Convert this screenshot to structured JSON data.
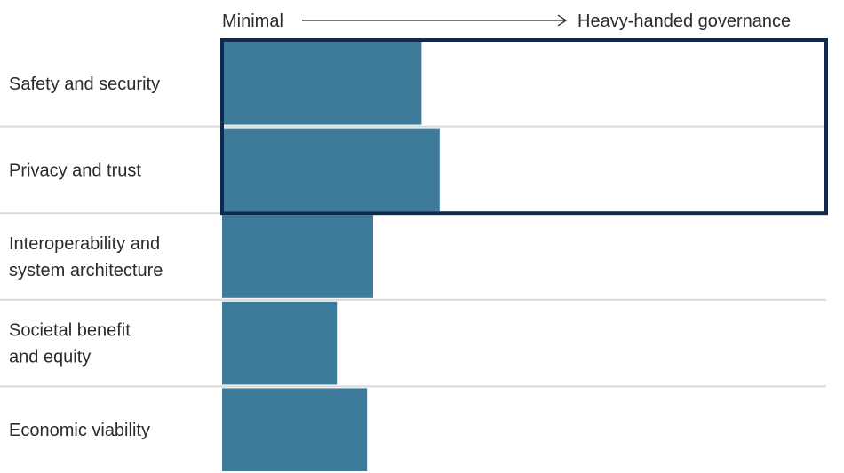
{
  "chart_data": {
    "type": "bar",
    "orientation": "horizontal",
    "scale_left_label": "Minimal",
    "scale_right_label": "Heavy-handed governance",
    "categories": [
      "Safety and security",
      "Privacy and trust",
      "Interoperability and system architecture",
      "Societal benefit and equity",
      "Economic viability"
    ],
    "category_lines": [
      [
        "Safety and security"
      ],
      [
        "Privacy and trust"
      ],
      [
        "Interoperability and",
        "system architecture"
      ],
      [
        "Societal benefit",
        "and equity"
      ],
      [
        "Economic viability"
      ]
    ],
    "values": [
      0.33,
      0.36,
      0.25,
      0.19,
      0.24
    ],
    "xlim": [
      0,
      1
    ],
    "highlighted_categories": [
      "Safety and security",
      "Privacy and trust"
    ],
    "colors": {
      "bar": "#3e7a99",
      "highlight_border": "#0e2a4d",
      "grid": "#d9d9d9",
      "axis_arrow": "#2b2b2b"
    }
  }
}
